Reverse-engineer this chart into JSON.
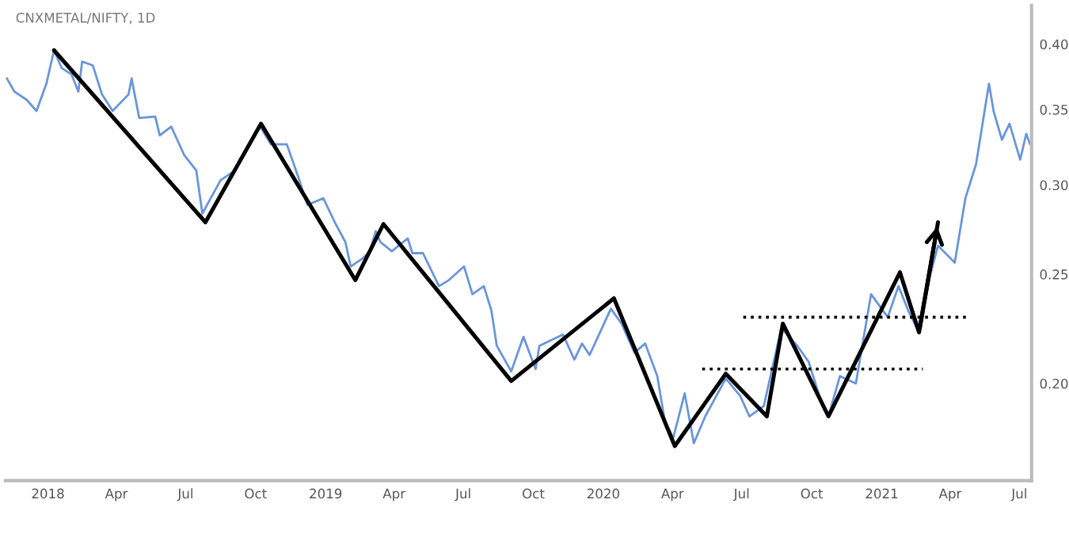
{
  "chart_data": {
    "type": "line",
    "title": "CNXMETAL/NIFTY, 1D",
    "log": "y",
    "grid": false,
    "legend": false,
    "marker": "none",
    "xlim": [
      "2017-11-06",
      "2021-07-17"
    ],
    "xticks": [
      {
        "value": "2018-01-01",
        "label": "2018"
      },
      {
        "value": "2018-04-01",
        "label": "Apr"
      },
      {
        "value": "2018-07-01",
        "label": "Jul"
      },
      {
        "value": "2018-10-01",
        "label": "Oct"
      },
      {
        "value": "2019-01-01",
        "label": "2019"
      },
      {
        "value": "2019-04-01",
        "label": "Apr"
      },
      {
        "value": "2019-07-01",
        "label": "Jul"
      },
      {
        "value": "2019-10-01",
        "label": "Oct"
      },
      {
        "value": "2020-01-01",
        "label": "2020"
      },
      {
        "value": "2020-04-01",
        "label": "Apr"
      },
      {
        "value": "2020-07-01",
        "label": "Jul"
      },
      {
        "value": "2020-10-01",
        "label": "Oct"
      },
      {
        "value": "2021-01-01",
        "label": "2021"
      },
      {
        "value": "2021-04-01",
        "label": "Apr"
      },
      {
        "value": "2021-07-01",
        "label": "Jul"
      }
    ],
    "ylim": [
      0.164,
      0.433
    ],
    "yticks": [
      {
        "value": 0.2,
        "label": "0.20"
      },
      {
        "value": 0.25,
        "label": "0.25"
      },
      {
        "value": 0.3,
        "label": "0.30"
      },
      {
        "value": 0.35,
        "label": "0.35"
      },
      {
        "value": 0.4,
        "label": "0.40"
      }
    ],
    "series": [
      {
        "color": "#6a95d8",
        "line_style": "solid",
        "x": [
          "2017-11-08",
          "2017-11-18",
          "2017-12-04",
          "2017-12-17",
          "2017-12-30",
          "2018-01-09",
          "2018-01-19",
          "2018-02-01",
          "2018-02-10",
          "2018-02-15",
          "2018-03-01",
          "2018-03-13",
          "2018-03-27",
          "2018-04-17",
          "2018-04-21",
          "2018-05-01",
          "2018-05-22",
          "2018-05-28",
          "2018-06-12",
          "2018-06-29",
          "2018-07-15",
          "2018-07-23",
          "2018-08-03",
          "2018-08-16",
          "2018-09-04",
          "2018-09-24",
          "2018-10-07",
          "2018-10-21",
          "2018-11-11",
          "2018-11-26",
          "2018-12-08",
          "2018-12-29",
          "2019-01-13",
          "2019-01-27",
          "2019-02-03",
          "2019-02-18",
          "2019-02-28",
          "2019-03-08",
          "2019-03-14",
          "2019-03-29",
          "2019-04-19",
          "2019-04-25",
          "2019-05-09",
          "2019-05-30",
          "2019-06-12",
          "2019-07-02",
          "2019-07-13",
          "2019-07-28",
          "2019-08-07",
          "2019-08-14",
          "2019-09-02",
          "2019-09-18",
          "2019-10-04",
          "2019-10-09",
          "2019-11-09",
          "2019-11-24",
          "2019-12-04",
          "2019-12-14",
          "2020-01-11",
          "2020-01-25",
          "2020-02-11",
          "2020-02-25",
          "2020-03-12",
          "2020-03-22",
          "2020-04-02",
          "2020-04-17",
          "2020-04-29",
          "2020-05-14",
          "2020-06-10",
          "2020-06-29",
          "2020-07-11",
          "2020-07-30",
          "2020-08-22",
          "2020-09-12",
          "2020-09-27",
          "2020-10-11",
          "2020-10-23",
          "2020-11-07",
          "2020-11-28",
          "2020-12-18",
          "2021-01-09",
          "2021-01-23",
          "2021-02-05",
          "2021-02-19",
          "2021-03-06",
          "2021-03-16",
          "2021-04-07",
          "2021-04-21",
          "2021-05-05",
          "2021-05-22",
          "2021-05-28",
          "2021-06-08",
          "2021-06-18",
          "2021-07-02",
          "2021-07-10",
          "2021-07-15"
        ],
        "values": [
          0.373,
          0.363,
          0.357,
          0.349,
          0.369,
          0.395,
          0.381,
          0.376,
          0.363,
          0.386,
          0.383,
          0.361,
          0.349,
          0.361,
          0.373,
          0.344,
          0.345,
          0.332,
          0.338,
          0.319,
          0.309,
          0.283,
          0.292,
          0.303,
          0.309,
          0.326,
          0.338,
          0.326,
          0.326,
          0.305,
          0.288,
          0.292,
          0.278,
          0.267,
          0.254,
          0.258,
          0.262,
          0.273,
          0.267,
          0.262,
          0.269,
          0.261,
          0.261,
          0.244,
          0.247,
          0.254,
          0.24,
          0.244,
          0.232,
          0.216,
          0.205,
          0.22,
          0.206,
          0.216,
          0.221,
          0.21,
          0.217,
          0.212,
          0.233,
          0.226,
          0.213,
          0.217,
          0.203,
          0.185,
          0.179,
          0.196,
          0.177,
          0.187,
          0.202,
          0.195,
          0.187,
          0.191,
          0.224,
          0.216,
          0.209,
          0.195,
          0.187,
          0.203,
          0.2,
          0.24,
          0.229,
          0.244,
          0.232,
          0.222,
          0.25,
          0.265,
          0.256,
          0.292,
          0.313,
          0.369,
          0.349,
          0.329,
          0.34,
          0.316,
          0.333,
          0.326
        ]
      },
      {
        "color": "#000000",
        "line_style": "solid",
        "x": [
          "2018-01-09",
          "2018-07-27",
          "2018-10-08",
          "2019-02-09",
          "2019-03-18",
          "2019-09-02",
          "2020-01-15",
          "2020-04-04",
          "2020-06-10",
          "2020-08-03",
          "2020-08-24",
          "2020-10-23",
          "2021-01-25",
          "2021-02-19",
          "2021-03-16"
        ],
        "values": [
          0.395,
          0.278,
          0.34,
          0.247,
          0.277,
          0.201,
          0.238,
          0.176,
          0.204,
          0.187,
          0.226,
          0.187,
          0.251,
          0.222,
          0.278
        ]
      },
      {
        "color": "#000000",
        "line_style": "dotted",
        "x": [
          "2020-07-03",
          "2021-04-27"
        ],
        "values": [
          0.229,
          0.229
        ]
      },
      {
        "color": "#000000",
        "line_style": "dotted",
        "x": [
          "2020-05-10",
          "2021-02-24"
        ],
        "values": [
          0.206,
          0.206
        ]
      }
    ]
  }
}
